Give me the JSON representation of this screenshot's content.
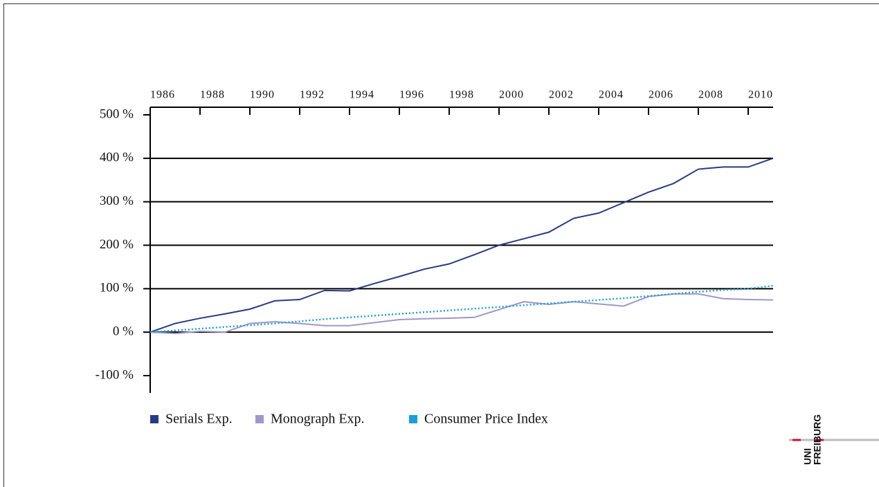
{
  "chart_data": {
    "type": "line",
    "x": [
      1986,
      1987,
      1988,
      1989,
      1990,
      1991,
      1992,
      1993,
      1994,
      1995,
      1996,
      1997,
      1998,
      1999,
      2000,
      2001,
      2002,
      2003,
      2004,
      2005,
      2006,
      2007,
      2008,
      2009,
      2010,
      2011
    ],
    "series": [
      {
        "name": "Serials Exp.",
        "color": "#243b85",
        "style": "solid",
        "values": [
          0,
          20,
          32,
          42,
          53,
          72,
          75,
          96,
          95,
          112,
          128,
          145,
          157,
          178,
          200,
          215,
          230,
          262,
          274,
          298,
          322,
          342,
          375,
          380,
          380,
          400
        ]
      },
      {
        "name": "Monograph Exp.",
        "color": "#9f97c8",
        "style": "solid",
        "values": [
          0,
          -3,
          2,
          0,
          20,
          24,
          20,
          15,
          15,
          22,
          29,
          31,
          32,
          34,
          52,
          70,
          64,
          70,
          65,
          60,
          82,
          88,
          88,
          77,
          75,
          74
        ]
      },
      {
        "name": "Consumer Price Index",
        "color": "#1aa0d8",
        "style": "dotted",
        "values": [
          0,
          4,
          8,
          12,
          16,
          20,
          25,
          30,
          34,
          38,
          42,
          46,
          50,
          54,
          58,
          62,
          66,
          70,
          74,
          78,
          83,
          88,
          93,
          97,
          100,
          107
        ]
      }
    ],
    "xlim": [
      1986,
      2011
    ],
    "xticks": [
      1986,
      1988,
      1990,
      1992,
      1994,
      1996,
      1998,
      2000,
      2002,
      2004,
      2006,
      2008,
      2010
    ],
    "ylim": [
      -100,
      500
    ],
    "yticks": [
      {
        "value": -100,
        "label": "-100 %"
      },
      {
        "value": 0,
        "label": "0 %"
      },
      {
        "value": 100,
        "label": "100 %"
      },
      {
        "value": 200,
        "label": "200 %"
      },
      {
        "value": 300,
        "label": "300 %"
      },
      {
        "value": 400,
        "label": "400 %"
      },
      {
        "value": 500,
        "label": "500 %"
      }
    ],
    "grid": true,
    "legend": "bottom"
  },
  "logo": [
    "UNI",
    "FREIBURG"
  ]
}
